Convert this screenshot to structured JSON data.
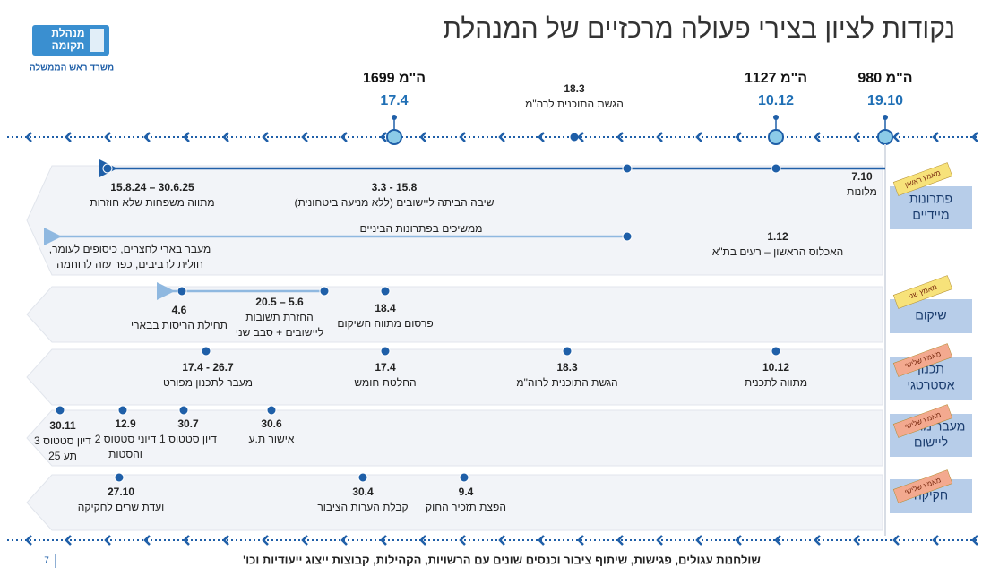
{
  "header": {
    "title": "נקודות לציון בצירי פעולה מרכזיים של המנהלת"
  },
  "logo": {
    "name": [
      "מנהלת",
      "תקומה"
    ],
    "ministry": "משרד ראש הממשלה"
  },
  "milestones": [
    {
      "decision": "ה\"מ 980",
      "date": "19.10"
    },
    {
      "decision": "ה\"מ 1127",
      "date": "10.12"
    },
    {
      "date": "18.3",
      "caption": "הגשת התוכנית לרה\"מ"
    },
    {
      "decision": "ה\"מ 1699",
      "date": "17.4"
    }
  ],
  "lanes": [
    {
      "label": [
        "פתרונות",
        "מיידיים"
      ],
      "tag": "מאמץ ראשון",
      "tag_color": "#f7e27a",
      "items": [
        {
          "lines": [
            "7.10",
            "מלונות"
          ]
        },
        {
          "lines": [
            "15.8 - 3.3",
            "שיבה הביתה ליישובים (ללא מניעה ביטחונית)"
          ]
        },
        {
          "lines": [
            "30.6.25 – 15.8.24",
            "מתווה משפחות שלא חוזרות"
          ]
        },
        {
          "lines": [
            "1.12",
            "האכלוס הראשון – רעים בת\"א"
          ]
        },
        {
          "lines": [
            "ממשיכים בפתרונות הביניים"
          ]
        },
        {
          "lines": [
            "מעבר בארי לחצרים, כיסופים לעומר,",
            "חולית לרביבים, כפר עזה לרוחמה"
          ]
        }
      ]
    },
    {
      "label": [
        "שיקום"
      ],
      "tag": "מאמץ שני",
      "tag_color": "#f7e27a",
      "items": [
        {
          "lines": [
            "18.4",
            "פרסום מתווה השיקום"
          ]
        },
        {
          "lines": [
            "5.6 – 20.5",
            "החזרת תשובות",
            "ליישובים + סבב שני"
          ]
        },
        {
          "lines": [
            "4.6",
            "תחילת הריסות בבארי"
          ]
        }
      ]
    },
    {
      "label": [
        "תכנון",
        "אסטרטגי"
      ],
      "tag": "מאמץ שלישי",
      "tag_color": "#f3a98f",
      "items": [
        {
          "lines": [
            "10.12",
            "מתווה לתכנית"
          ]
        },
        {
          "lines": [
            "18.3",
            "הגשת התוכנית לרוה\"מ"
          ]
        },
        {
          "lines": [
            "17.4",
            "החלטת חומש"
          ]
        },
        {
          "lines": [
            "26.7 - 17.4",
            "מעבר לתכנון מפורט"
          ]
        }
      ]
    },
    {
      "label": [
        "מעבר מתכנון",
        "ליישום"
      ],
      "tag": "מאמץ שלישי",
      "tag_color": "#f3a98f",
      "items": [
        {
          "lines": [
            "30.6",
            "אישור ת.ע"
          ]
        },
        {
          "lines": [
            "30.7",
            "דיון סטטוס 1"
          ]
        },
        {
          "lines": [
            "12.9",
            "דיוני סטטוס 2",
            "והסטות"
          ]
        },
        {
          "lines": [
            "30.11",
            "דיון סטטוס 3",
            "תע 25"
          ]
        }
      ]
    },
    {
      "label": [
        "חקיקה"
      ],
      "tag": "מאמץ שלישי",
      "tag_color": "#f3a98f",
      "items": [
        {
          "lines": [
            "9.4",
            "הפצת תזכיר החוק"
          ]
        },
        {
          "lines": [
            "30.4",
            "קבלת הערות הציבור"
          ]
        },
        {
          "lines": [
            "27.10",
            "ועדת שרים לחקיקה"
          ]
        }
      ]
    }
  ],
  "footer": {
    "text": "שולחנות עגולים, פגישות, שיתוף ציבור וכנסים שונים עם הרשויות, הקהילות, קבוצות ייצוג ייעודיות וכו'",
    "page": "7"
  }
}
